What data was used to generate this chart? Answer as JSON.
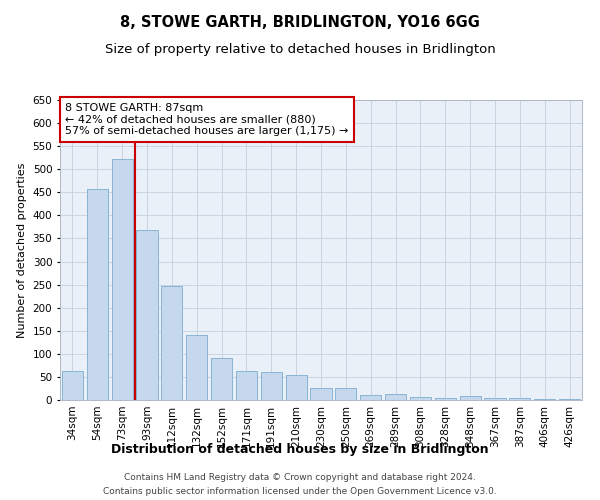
{
  "title": "8, STOWE GARTH, BRIDLINGTON, YO16 6GG",
  "subtitle": "Size of property relative to detached houses in Bridlington",
  "xlabel": "Distribution of detached houses by size in Bridlington",
  "ylabel": "Number of detached properties",
  "categories": [
    "34sqm",
    "54sqm",
    "73sqm",
    "93sqm",
    "112sqm",
    "132sqm",
    "152sqm",
    "171sqm",
    "191sqm",
    "210sqm",
    "230sqm",
    "250sqm",
    "269sqm",
    "289sqm",
    "308sqm",
    "328sqm",
    "348sqm",
    "367sqm",
    "387sqm",
    "406sqm",
    "426sqm"
  ],
  "values": [
    62,
    457,
    522,
    368,
    248,
    140,
    92,
    62,
    60,
    55,
    27,
    27,
    11,
    12,
    6,
    5,
    8,
    5,
    4,
    3,
    2
  ],
  "bar_color": "#c5d8ed",
  "bar_edge_color": "#8ab4d4",
  "bar_linewidth": 0.7,
  "vline_color": "#cc0000",
  "vline_linewidth": 1.5,
  "vline_x": 2.5,
  "annotation_text": "8 STOWE GARTH: 87sqm\n← 42% of detached houses are smaller (880)\n57% of semi-detached houses are larger (1,175) →",
  "annotation_box_color": "#ffffff",
  "annotation_box_edge": "#cc0000",
  "ylim": [
    0,
    650
  ],
  "yticks": [
    0,
    50,
    100,
    150,
    200,
    250,
    300,
    350,
    400,
    450,
    500,
    550,
    600,
    650
  ],
  "footnote1": "Contains HM Land Registry data © Crown copyright and database right 2024.",
  "footnote2": "Contains public sector information licensed under the Open Government Licence v3.0.",
  "bg_color": "#ffffff",
  "plot_bg_color": "#eaf0f8",
  "grid_color": "#c4d0e0",
  "title_fontsize": 10.5,
  "subtitle_fontsize": 9.5,
  "xlabel_fontsize": 9,
  "ylabel_fontsize": 8,
  "tick_fontsize": 7.5,
  "annotation_fontsize": 8,
  "footnote_fontsize": 6.5
}
